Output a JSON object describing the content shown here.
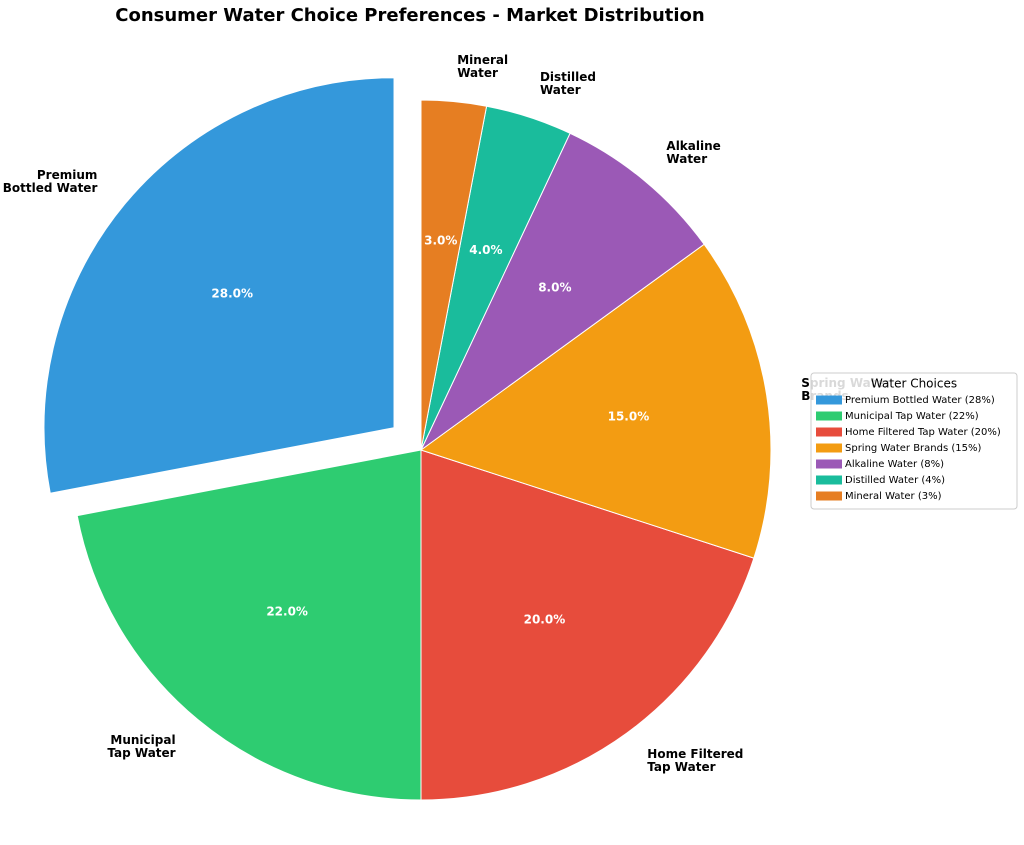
{
  "chart_data": {
    "type": "pie",
    "title": "Consumer Water Choice Preferences - Market Distribution",
    "categories": [
      "Premium\nBottled Water",
      "Municipal\nTap Water",
      "Home Filtered\nTap Water",
      "Spring Water\nBrands",
      "Alkaline\nWater",
      "Distilled\nWater",
      "Mineral\nWater"
    ],
    "values": [
      28,
      22,
      20,
      15,
      8,
      4,
      3
    ],
    "value_labels": [
      "28.0%",
      "22.0%",
      "20.0%",
      "15.0%",
      "8.0%",
      "4.0%",
      "3.0%"
    ],
    "colors": [
      "#3498db",
      "#2ecc71",
      "#e74c3c",
      "#f39c12",
      "#9b59b6",
      "#1abc9c",
      "#e67e22"
    ],
    "explode": [
      0.1,
      0,
      0,
      0,
      0,
      0,
      0
    ],
    "start_angle": 90,
    "counterclock": true,
    "legend": {
      "title": "Water Choices",
      "position": "right",
      "labels": [
        "Premium Bottled Water (28%)",
        "Municipal Tap Water (22%)",
        "Home Filtered Tap Water (20%)",
        "Spring Water Brands (15%)",
        "Alkaline Water (8%)",
        "Distilled Water (4%)",
        "Mineral Water (3%)"
      ]
    }
  }
}
